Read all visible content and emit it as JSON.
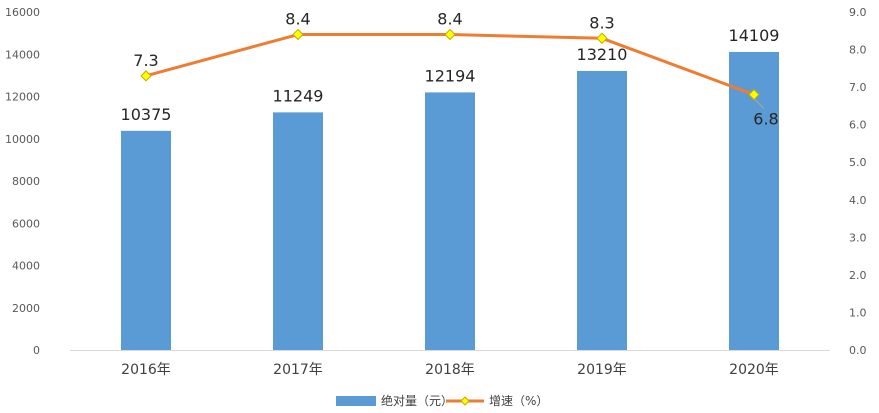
{
  "chart_data": {
    "type": "bar",
    "categories": [
      "2016年",
      "2017年",
      "2018年",
      "2019年",
      "2020年"
    ],
    "series": [
      {
        "name": "绝对量（元）",
        "type": "bar",
        "axis": "left",
        "values": [
          10375,
          11249,
          12194,
          13210,
          14109
        ],
        "data_labels": [
          "10375",
          "11249",
          "12194",
          "13210",
          "14109"
        ],
        "color": "#5B9BD5"
      },
      {
        "name": "增速（%）",
        "type": "line",
        "axis": "right",
        "values": [
          7.3,
          8.4,
          8.4,
          8.3,
          6.8
        ],
        "data_labels": [
          "7.3",
          "8.4",
          "8.4",
          "8.3",
          "6.8"
        ],
        "color": "#ED7D31",
        "marker_color": "#FFFF00"
      }
    ],
    "y_left": {
      "ylim": [
        0,
        16000
      ],
      "ticks": [
        "0",
        "2000",
        "4000",
        "6000",
        "8000",
        "10000",
        "12000",
        "14000",
        "16000"
      ]
    },
    "y_right": {
      "ylim": [
        0,
        9.0
      ],
      "ticks": [
        "0.0",
        "1.0",
        "2.0",
        "3.0",
        "4.0",
        "5.0",
        "6.0",
        "7.0",
        "8.0",
        "9.0"
      ]
    },
    "grid": false,
    "legend": "bottom-center",
    "title": "",
    "xlabel": "",
    "ylabel": ""
  }
}
